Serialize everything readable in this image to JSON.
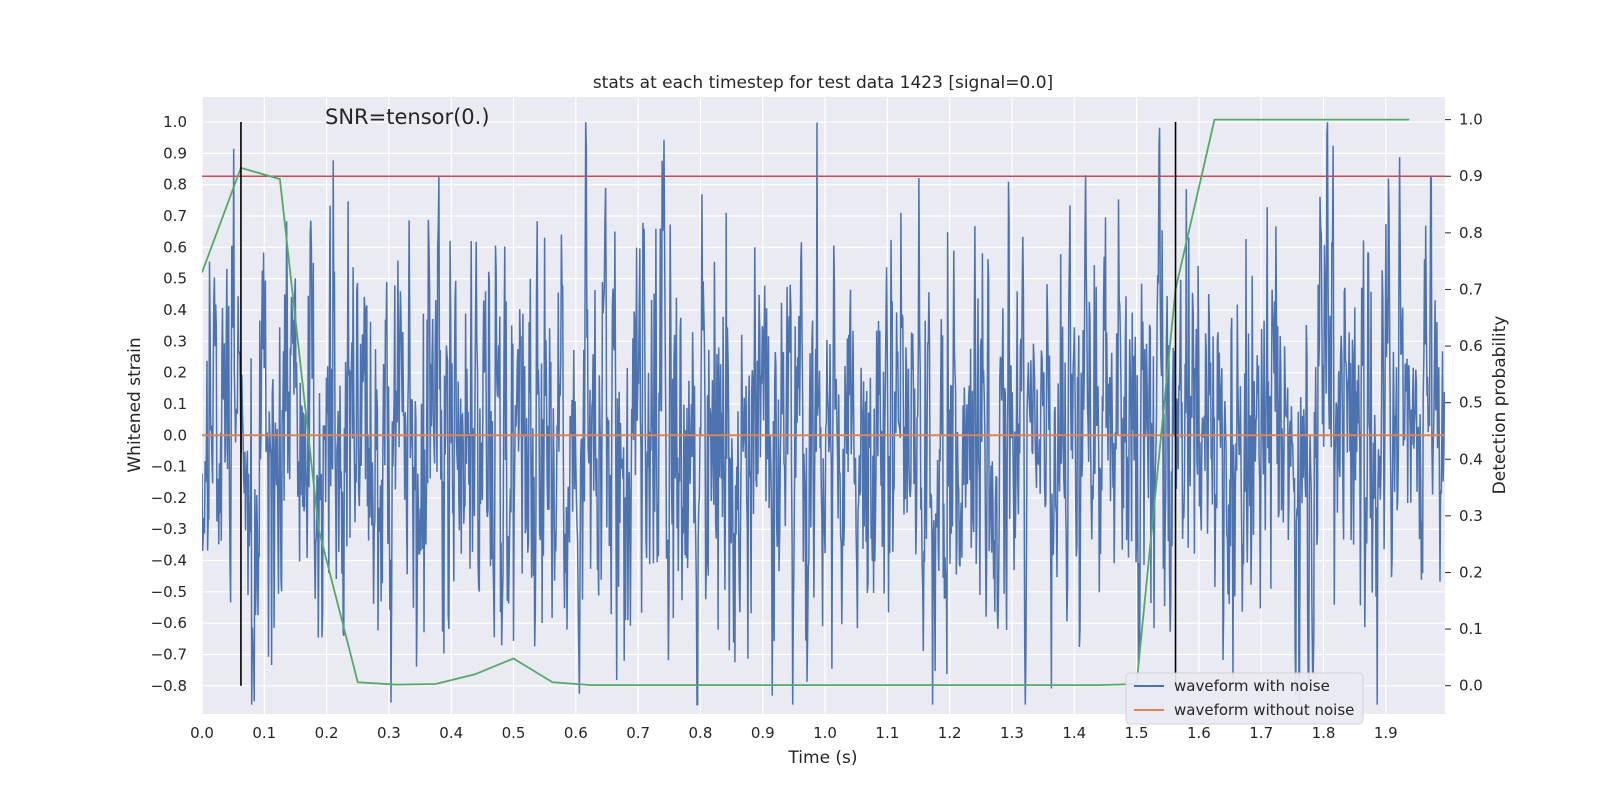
{
  "chart_data": {
    "type": "line",
    "title": "stats at each timestep for test data 1423 [signal=0.0]",
    "xlabel": "Time (s)",
    "ylabel_left": "Whitened strain",
    "ylabel_right": "Detection probability",
    "annotation": "SNR=tensor(0.)",
    "xlim": [
      0.0,
      1.995
    ],
    "ylim_left": [
      -0.89,
      1.08
    ],
    "ylim_right": [
      -0.05,
      1.04
    ],
    "x_ticks": [
      "0.0",
      "0.1",
      "0.2",
      "0.3",
      "0.4",
      "0.5",
      "0.6",
      "0.7",
      "0.8",
      "0.9",
      "1.0",
      "1.1",
      "1.2",
      "1.3",
      "1.4",
      "1.5",
      "1.6",
      "1.7",
      "1.8",
      "1.9"
    ],
    "y_left_ticks": [
      "1.0",
      "0.9",
      "0.8",
      "0.7",
      "0.6",
      "0.5",
      "0.4",
      "0.3",
      "0.2",
      "0.1",
      "0.0",
      "−0.1",
      "−0.2",
      "−0.3",
      "−0.4",
      "−0.5",
      "−0.6",
      "−0.7",
      "−0.8"
    ],
    "y_right_ticks": [
      "1.0",
      "0.9",
      "0.8",
      "0.7",
      "0.6",
      "0.5",
      "0.4",
      "0.3",
      "0.2",
      "0.1",
      "0.0"
    ],
    "threshold_right": 0.9,
    "vertical_markers_x": [
      0.0625,
      1.5625
    ],
    "vertical_marker_range_left": [
      -0.8,
      1.0
    ],
    "grid": true,
    "legend_position": "lower-right",
    "series": [
      {
        "name": "waveform with noise",
        "color": "#4c72b0",
        "axis": "left",
        "kind": "noise",
        "x_range": [
          0.0,
          1.995
        ],
        "amplitude": 0.3,
        "seed": 1423
      },
      {
        "name": "waveform without noise",
        "color": "#dd8452",
        "axis": "left",
        "x": [
          0.0,
          1.995
        ],
        "values": [
          0.0,
          0.0
        ]
      },
      {
        "name": "detection probability",
        "color": "#55a868",
        "axis": "right",
        "x": [
          0.0,
          0.0625,
          0.125,
          0.1875,
          0.25,
          0.3125,
          0.375,
          0.4375,
          0.5,
          0.5625,
          0.625,
          0.6875,
          0.75,
          0.8125,
          0.875,
          0.9375,
          1.0,
          1.0625,
          1.125,
          1.1875,
          1.25,
          1.3125,
          1.375,
          1.4375,
          1.5,
          1.5625,
          1.625,
          1.6875,
          1.75,
          1.8125,
          1.875,
          1.9375
        ],
        "values": [
          0.73,
          0.915,
          0.895,
          0.275,
          0.006,
          0.002,
          0.003,
          0.02,
          0.048,
          0.006,
          0.001,
          0.001,
          0.001,
          0.001,
          0.001,
          0.001,
          0.001,
          0.001,
          0.001,
          0.001,
          0.001,
          0.001,
          0.001,
          0.001,
          0.003,
          0.7,
          1.0,
          1.0,
          1.0,
          1.0,
          1.0,
          1.0
        ]
      }
    ],
    "colors": {
      "background": "#eaeaf2",
      "grid": "#ffffff",
      "threshold": "#c44e52",
      "marker": "#000000"
    }
  }
}
